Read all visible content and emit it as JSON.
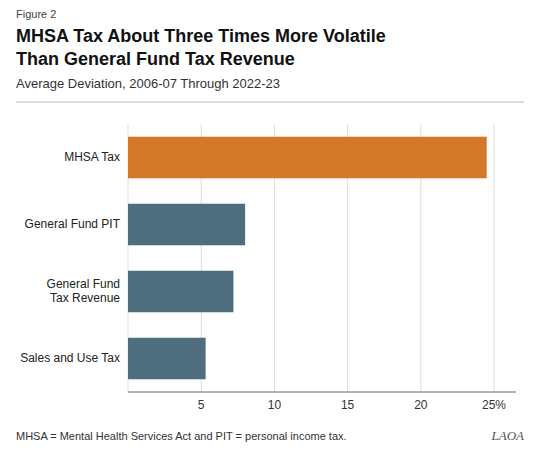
{
  "chart_data": {
    "type": "bar",
    "orientation": "horizontal",
    "title": "MHSA Tax About Three Times More Volatile\nThan General Fund Tax Revenue",
    "subtitle": "Average Deviation, 2006-07 Through 2022-23",
    "annotations": [
      "Figure 2",
      "MHSA = Mental Health Services Act and PIT = personal income tax.",
      "LAOA"
    ],
    "categories": [
      "MHSA Tax",
      "General Fund PIT",
      "General Fund\nTax Revenue",
      "Sales and Use Tax"
    ],
    "values": [
      24.5,
      8.0,
      7.2,
      5.3
    ],
    "colors": [
      "#D4782A",
      "#4E6E7E",
      "#4E6E7E",
      "#4E6E7E"
    ],
    "xlim": [
      0,
      26.5
    ],
    "xticks": [
      {
        "value": 0,
        "label": ""
      },
      5,
      10,
      15,
      20,
      {
        "value": 25,
        "label": "25%"
      }
    ],
    "grid": true
  }
}
